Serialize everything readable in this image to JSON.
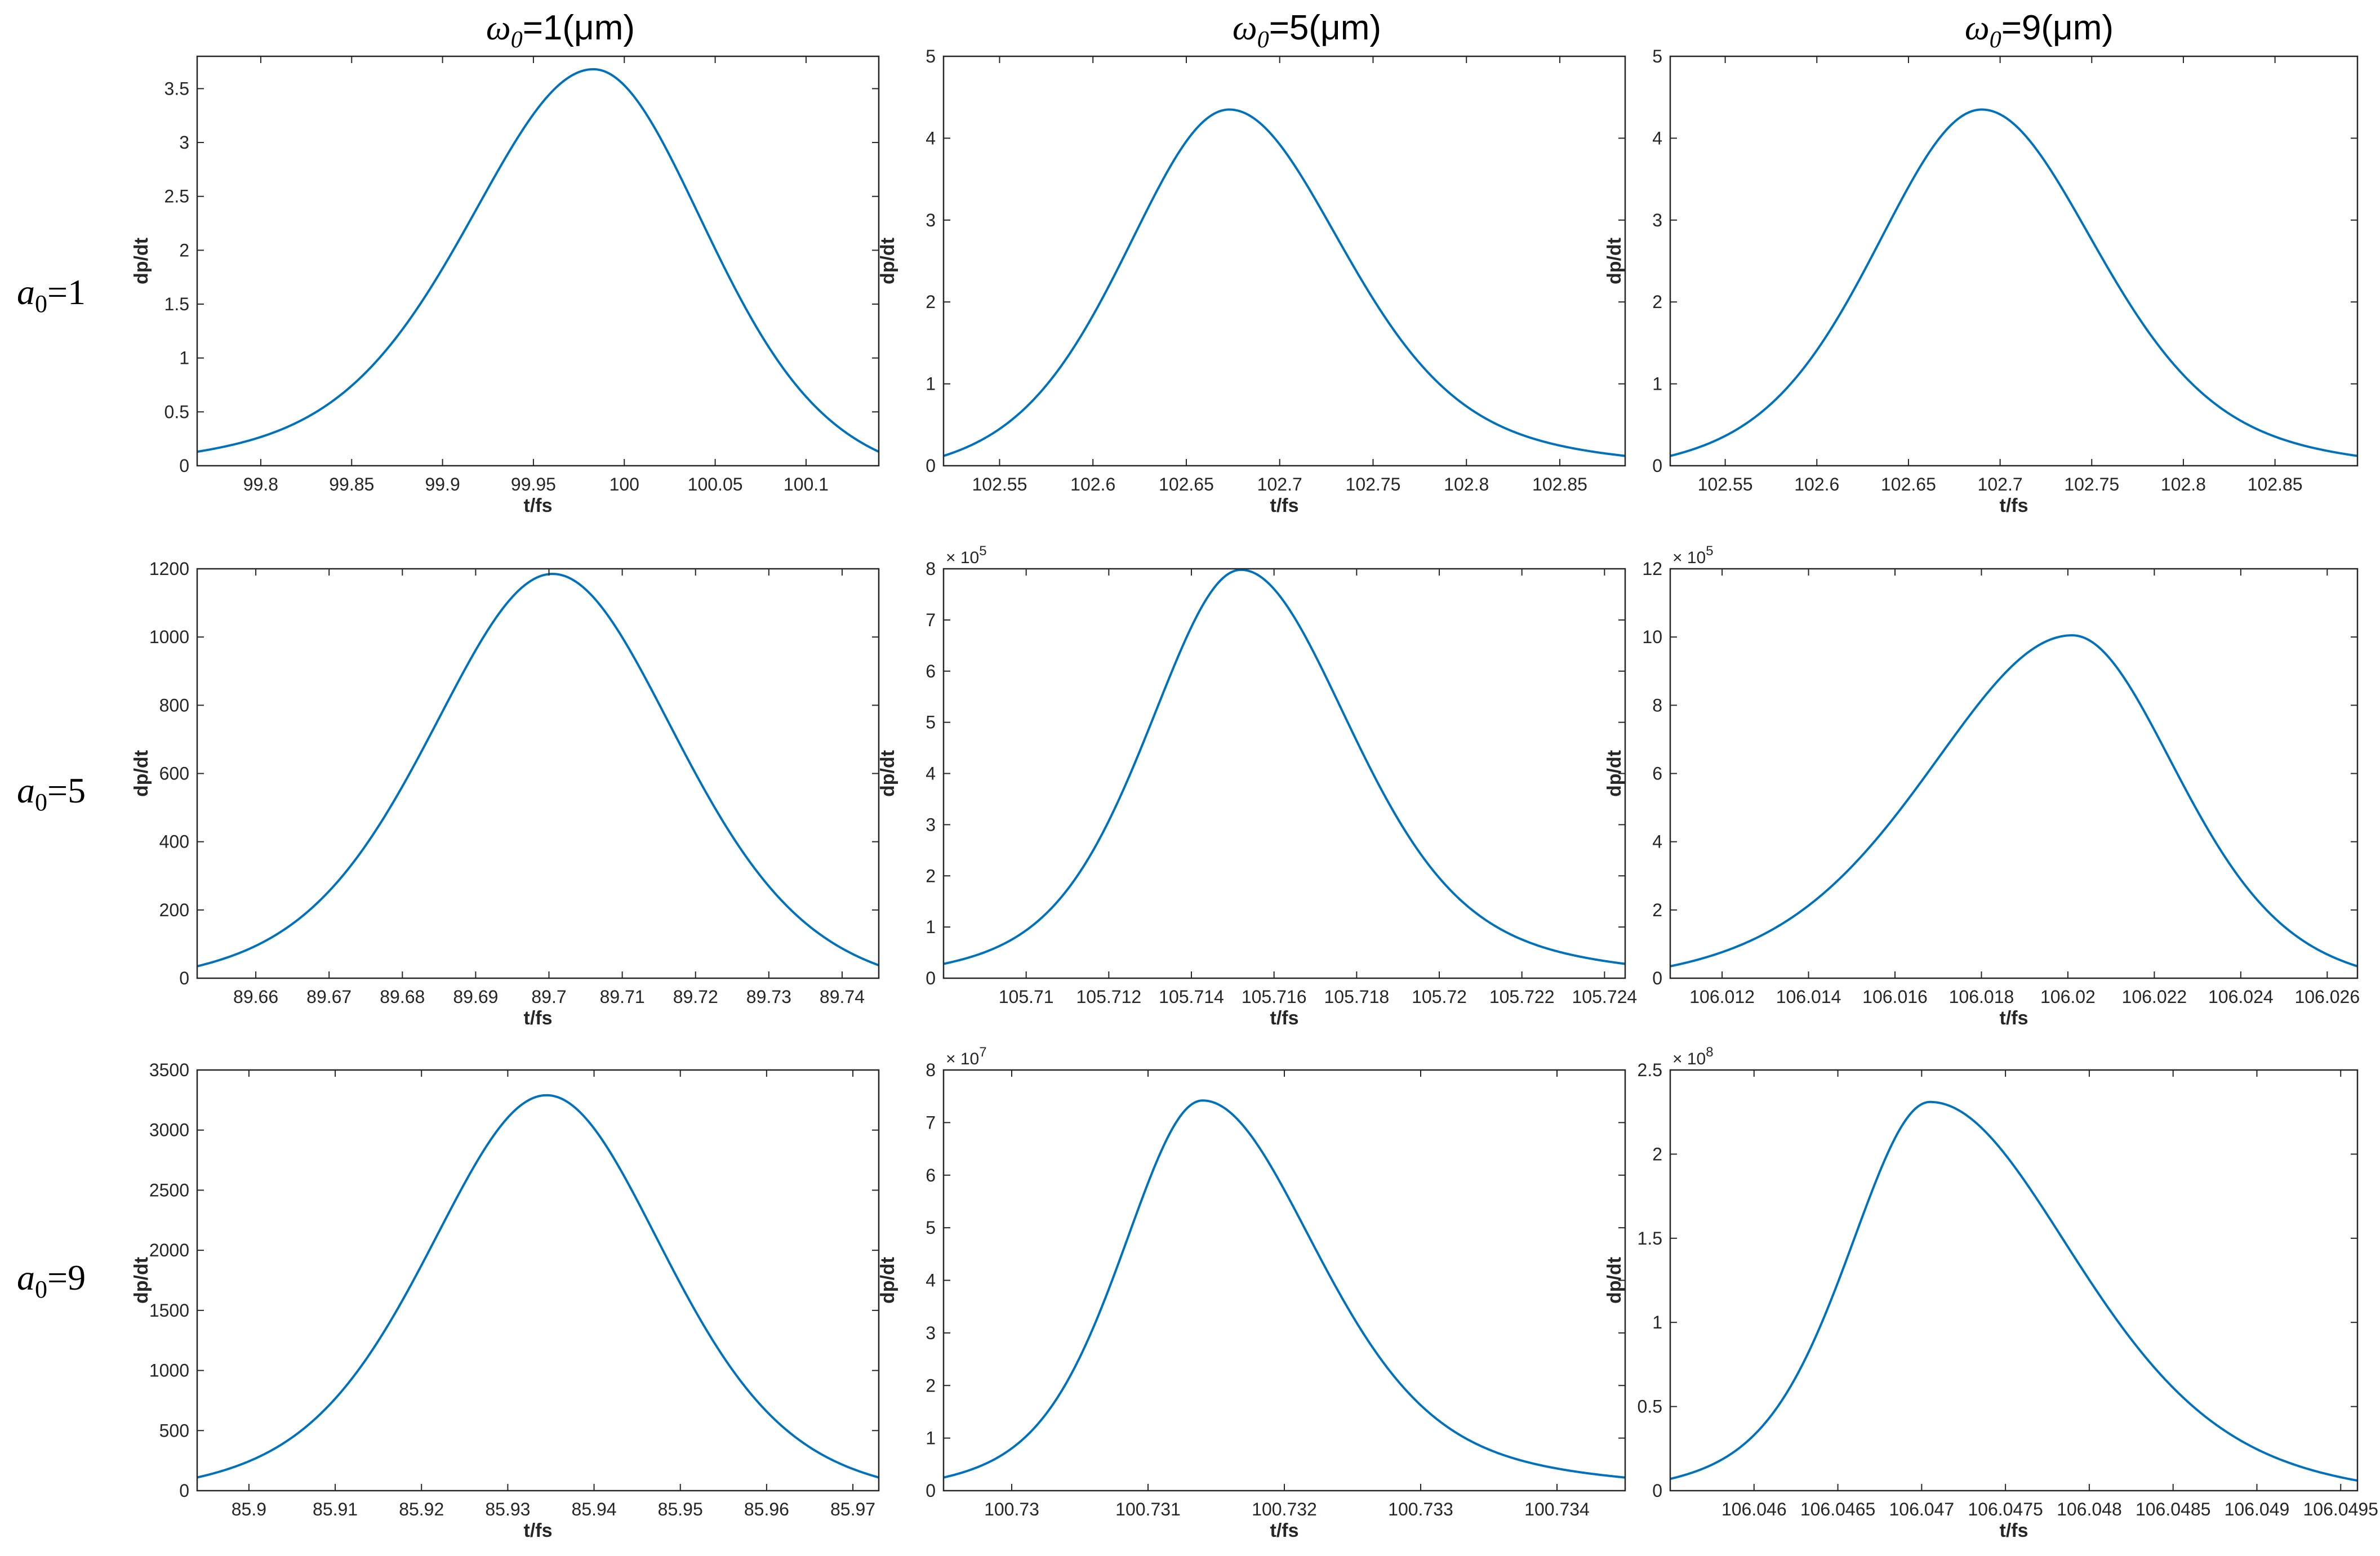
{
  "column_headers": [
    {
      "sym": "ω",
      "sub": "0",
      "rest": "=1(μm)"
    },
    {
      "sym": "ω",
      "sub": "0",
      "rest": "=5(μm)"
    },
    {
      "sym": "ω",
      "sub": "0",
      "rest": "=9(μm)"
    }
  ],
  "row_headers": [
    {
      "sym": "a",
      "sub": "0",
      "rest": "=1"
    },
    {
      "sym": "a",
      "sub": "0",
      "rest": "=5"
    },
    {
      "sym": "a",
      "sub": "0",
      "rest": "=9"
    }
  ],
  "colors": {
    "line": "#0072BD",
    "axes": "#262626"
  },
  "chart_data": [
    {
      "type": "line",
      "xlabel": "t/fs",
      "ylabel": "dp/dt",
      "exponent": null,
      "xlim": [
        99.765,
        100.14
      ],
      "ylim": [
        0,
        3.8
      ],
      "xticks": [
        99.8,
        99.85,
        99.9,
        99.95,
        100,
        100.05,
        100.1
      ],
      "xtick_labels": [
        "99.8",
        "99.85",
        "99.9",
        "99.95",
        "100",
        "100.05",
        "100.1"
      ],
      "yticks": [
        0,
        0.5,
        1,
        1.5,
        2,
        2.5,
        3,
        3.5
      ],
      "ytick_labels": [
        "0",
        "0.5",
        "1",
        "1.5",
        "2",
        "2.5",
        "3",
        "3.5"
      ],
      "peak": {
        "x": 99.983,
        "y": 3.68
      },
      "baseline": {
        "left": 0.13,
        "right": 0.13
      },
      "width": {
        "left": 0.068,
        "right": 0.062
      }
    },
    {
      "type": "line",
      "xlabel": "t/fs",
      "ylabel": "dp/dt",
      "exponent": null,
      "xlim": [
        102.52,
        102.885
      ],
      "ylim": [
        0,
        5
      ],
      "xticks": [
        102.55,
        102.6,
        102.65,
        102.7,
        102.75,
        102.8,
        102.85
      ],
      "xtick_labels": [
        "102.55",
        "102.6",
        "102.65",
        "102.7",
        "102.75",
        "102.8",
        "102.85"
      ],
      "yticks": [
        0,
        1,
        2,
        3,
        4,
        5
      ],
      "ytick_labels": [
        "0",
        "1",
        "2",
        "3",
        "4",
        "5"
      ],
      "peak": {
        "x": 102.673,
        "y": 4.35
      },
      "baseline": {
        "left": 0.12,
        "right": 0.12
      },
      "width": {
        "left": 0.055,
        "right": 0.06
      }
    },
    {
      "type": "line",
      "xlabel": "t/fs",
      "ylabel": "dp/dt",
      "exponent": null,
      "xlim": [
        102.52,
        102.895
      ],
      "ylim": [
        0,
        5
      ],
      "xticks": [
        102.55,
        102.6,
        102.65,
        102.7,
        102.75,
        102.8,
        102.85
      ],
      "xtick_labels": [
        "102.55",
        "102.6",
        "102.65",
        "102.7",
        "102.75",
        "102.8",
        "102.85"
      ],
      "yticks": [
        0,
        1,
        2,
        3,
        4,
        5
      ],
      "ytick_labels": [
        "0",
        "1",
        "2",
        "3",
        "4",
        "5"
      ],
      "peak": {
        "x": 102.69,
        "y": 4.35
      },
      "baseline": {
        "left": 0.12,
        "right": 0.12
      },
      "width": {
        "left": 0.058,
        "right": 0.062
      }
    },
    {
      "type": "line",
      "xlabel": "t/fs",
      "ylabel": "dp/dt",
      "exponent": null,
      "xlim": [
        89.652,
        89.745
      ],
      "ylim": [
        0,
        1200
      ],
      "xticks": [
        89.66,
        89.67,
        89.68,
        89.69,
        89.7,
        89.71,
        89.72,
        89.73,
        89.74
      ],
      "xtick_labels": [
        "89.66",
        "89.67",
        "89.68",
        "89.69",
        "89.7",
        "89.71",
        "89.72",
        "89.73",
        "89.74"
      ],
      "yticks": [
        0,
        200,
        400,
        600,
        800,
        1000,
        1200
      ],
      "ytick_labels": [
        "0",
        "200",
        "400",
        "600",
        "800",
        "1000",
        "1200"
      ],
      "peak": {
        "x": 89.7005,
        "y": 1185
      },
      "baseline": {
        "left": 35,
        "right": 38
      },
      "width": {
        "left": 0.0165,
        "right": 0.0168
      }
    },
    {
      "type": "line",
      "xlabel": "t/fs",
      "ylabel": "dp/dt",
      "exponent": "5",
      "xlim": [
        105.708,
        105.7245
      ],
      "ylim": [
        0,
        8
      ],
      "xticks": [
        105.71,
        105.712,
        105.714,
        105.716,
        105.718,
        105.72,
        105.722,
        105.724
      ],
      "xtick_labels": [
        "105.71",
        "105.712",
        "105.714",
        "105.716",
        "105.718",
        "105.72",
        "105.722",
        "105.724"
      ],
      "yticks": [
        0,
        1,
        2,
        3,
        4,
        5,
        6,
        7,
        8
      ],
      "ytick_labels": [
        "0",
        "1",
        "2",
        "3",
        "4",
        "5",
        "6",
        "7",
        "8"
      ],
      "peak": {
        "x": 105.7152,
        "y": 7.98
      },
      "baseline": {
        "left": 0.28,
        "right": 0.28
      },
      "width": {
        "left": 0.0022,
        "right": 0.0026
      }
    },
    {
      "type": "line",
      "xlabel": "t/fs",
      "ylabel": "dp/dt",
      "exponent": "5",
      "xlim": [
        106.0108,
        106.0267
      ],
      "ylim": [
        0,
        12
      ],
      "xticks": [
        106.012,
        106.014,
        106.016,
        106.018,
        106.02,
        106.022,
        106.024,
        106.026
      ],
      "xtick_labels": [
        "106.012",
        "106.014",
        "106.016",
        "106.018",
        "106.02",
        "106.022",
        "106.024",
        "106.026"
      ],
      "yticks": [
        0,
        2,
        4,
        6,
        8,
        10,
        12
      ],
      "ytick_labels": [
        "0",
        "2",
        "4",
        "6",
        "8",
        "10",
        "12"
      ],
      "peak": {
        "x": 106.0201,
        "y": 10.05
      },
      "baseline": {
        "left": 0.35,
        "right": 0.35
      },
      "width": {
        "left": 0.0033,
        "right": 0.0024
      }
    },
    {
      "type": "line",
      "xlabel": "t/fs",
      "ylabel": "dp/dt",
      "exponent": null,
      "xlim": [
        85.894,
        85.973
      ],
      "ylim": [
        0,
        3500
      ],
      "xticks": [
        85.9,
        85.91,
        85.92,
        85.93,
        85.94,
        85.95,
        85.96,
        85.97
      ],
      "xtick_labels": [
        "85.9",
        "85.91",
        "85.92",
        "85.93",
        "85.94",
        "85.95",
        "85.96",
        "85.97"
      ],
      "yticks": [
        0,
        500,
        1000,
        1500,
        2000,
        2500,
        3000,
        3500
      ],
      "ytick_labels": [
        "0",
        "500",
        "1000",
        "1500",
        "2000",
        "2500",
        "3000",
        "3500"
      ],
      "peak": {
        "x": 85.9345,
        "y": 3290
      },
      "baseline": {
        "left": 110,
        "right": 110
      },
      "width": {
        "left": 0.0135,
        "right": 0.0135
      }
    },
    {
      "type": "line",
      "xlabel": "t/fs",
      "ylabel": "dp/dt",
      "exponent": "7",
      "xlim": [
        100.7295,
        100.7345
      ],
      "ylim": [
        0,
        8
      ],
      "xticks": [
        100.73,
        100.731,
        100.732,
        100.733,
        100.734
      ],
      "xtick_labels": [
        "100.73",
        "100.731",
        "100.732",
        "100.733",
        "100.734"
      ],
      "yticks": [
        0,
        1,
        2,
        3,
        4,
        5,
        6,
        7,
        8
      ],
      "ytick_labels": [
        "0",
        "1",
        "2",
        "3",
        "4",
        "5",
        "6",
        "7",
        "8"
      ],
      "peak": {
        "x": 100.7314,
        "y": 7.42
      },
      "baseline": {
        "left": 0.25,
        "right": 0.25
      },
      "width": {
        "left": 0.00058,
        "right": 0.00082
      }
    },
    {
      "type": "line",
      "xlabel": "t/fs",
      "ylabel": "dp/dt",
      "exponent": "8",
      "xlim": [
        106.0455,
        106.0496
      ],
      "ylim": [
        0,
        2.5
      ],
      "xticks": [
        106.046,
        106.0465,
        106.047,
        106.0475,
        106.048,
        106.0485,
        106.049,
        106.0495
      ],
      "xtick_labels": [
        "106.046",
        "106.0465",
        "106.047",
        "106.0475",
        "106.048",
        "106.0485",
        "106.049",
        "106.0495"
      ],
      "yticks": [
        0,
        0.5,
        1,
        1.5,
        2,
        2.5
      ],
      "ytick_labels": [
        "0",
        "0.5",
        "1",
        "1.5",
        "2",
        "2.5"
      ],
      "peak": {
        "x": 106.04705,
        "y": 2.31
      },
      "baseline": {
        "left": 0.07,
        "right": 0.06
      },
      "width": {
        "left": 0.00048,
        "right": 0.00085
      }
    }
  ]
}
